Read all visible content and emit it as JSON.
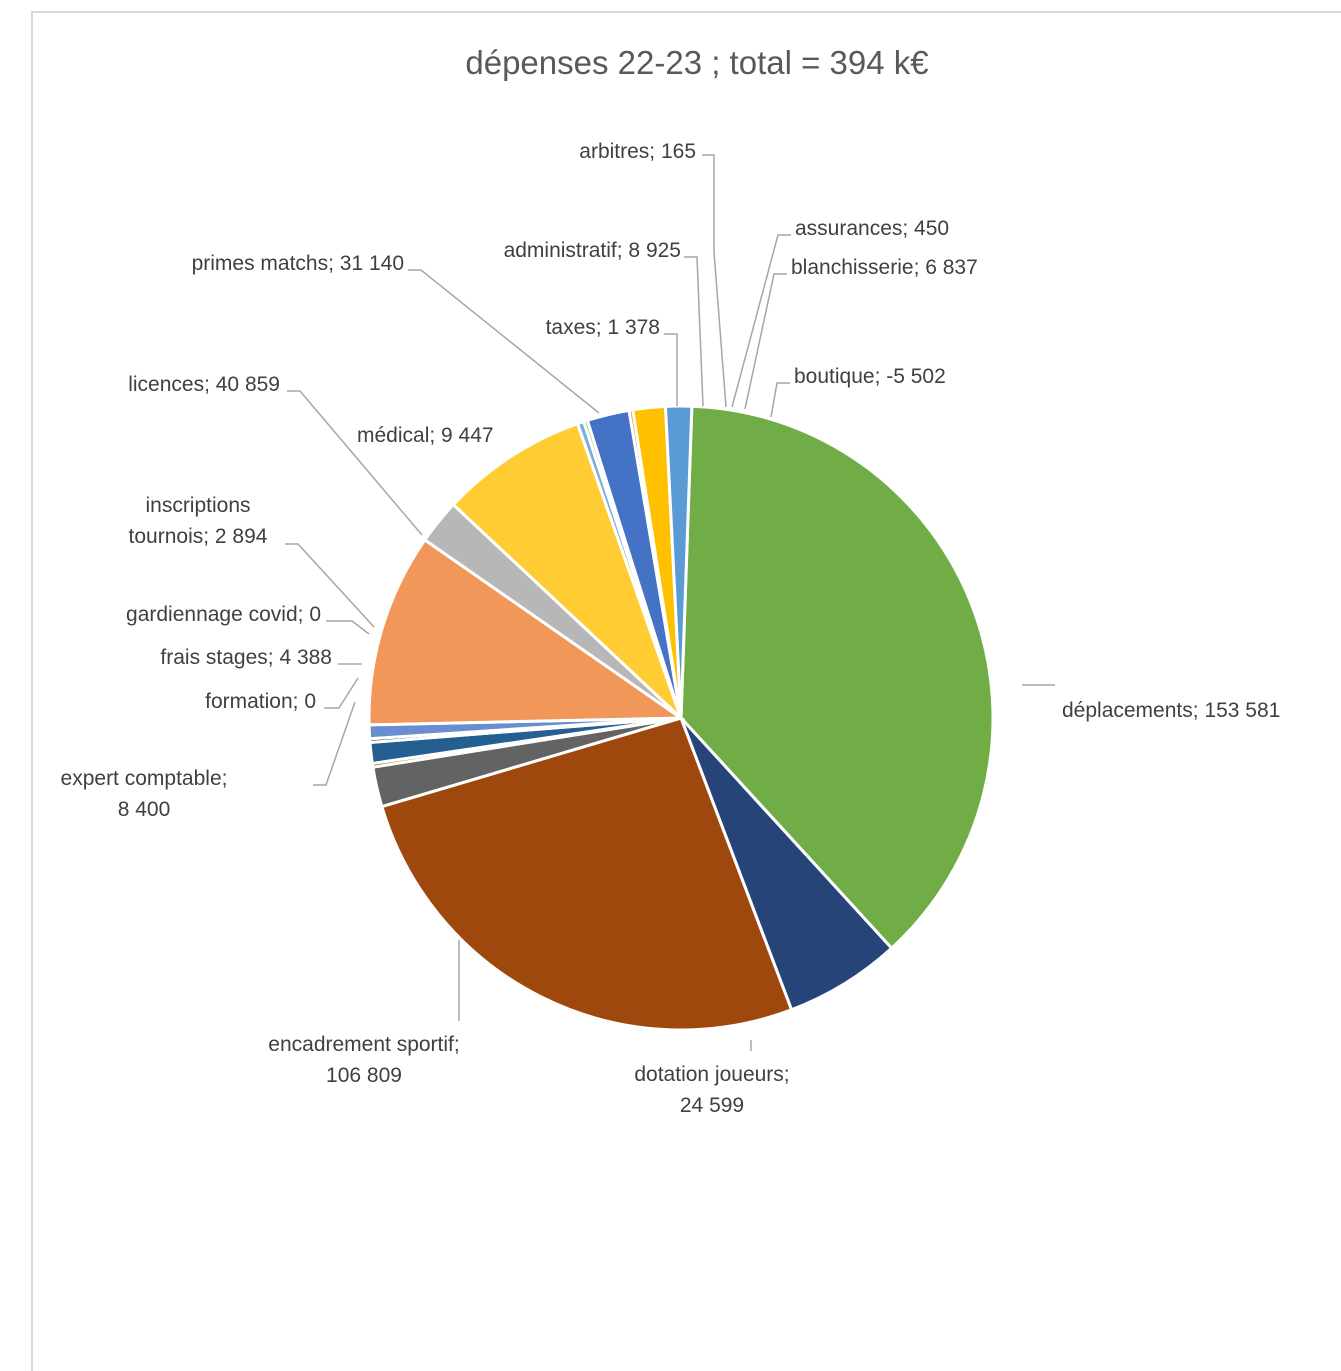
{
  "chart_data": {
    "type": "pie",
    "title": "dépenses 22-23 ; total = 394 k€",
    "slices": [
      {
        "name": "déplacements",
        "value": 153581,
        "label": "déplacements; 153 581",
        "color": "#70ad47"
      },
      {
        "name": "dotation joueurs",
        "value": 24599,
        "label": "dotation joueurs; 24 599",
        "color": "#264478"
      },
      {
        "name": "encadrement sportif",
        "value": 106809,
        "label": "encadrement sportif; 106 809",
        "color": "#9e480e"
      },
      {
        "name": "expert comptable",
        "value": 8400,
        "label": "expert comptable; 8 400",
        "color": "#636363"
      },
      {
        "name": "formation",
        "value": 0,
        "label": "formation; 0",
        "color": "#997300"
      },
      {
        "name": "frais stages",
        "value": 4388,
        "label": "frais stages; 4 388",
        "color": "#255e91"
      },
      {
        "name": "gardiennage covid",
        "value": 0,
        "label": "gardiennage covid; 0",
        "color": "#43682b"
      },
      {
        "name": "inscriptions tournois",
        "value": 2894,
        "label": "inscriptions tournois; 2 894",
        "color": "#698ed0"
      },
      {
        "name": "licences",
        "value": 40859,
        "label": "licences; 40 859",
        "color": "#f1975a"
      },
      {
        "name": "médical",
        "value": 9447,
        "label": "médical; 9 447",
        "color": "#b7b7b7"
      },
      {
        "name": "primes matchs",
        "value": 31140,
        "label": "primes matchs; 31 140",
        "color": "#ffcd33"
      },
      {
        "name": "taxes",
        "value": 1378,
        "label": "taxes; 1 378",
        "color": "#7cafdd"
      },
      {
        "name": "arbitres",
        "value": 165,
        "label": "arbitres; 165",
        "color": "#8cc168"
      },
      {
        "name": "administratif",
        "value": 8925,
        "label": "administratif; 8 925",
        "color": "#4472c4"
      },
      {
        "name": "assurances",
        "value": 450,
        "label": "assurances; 450",
        "color": "#ed7d31"
      },
      {
        "name": "blanchisserie",
        "value": 6837,
        "label": "blanchisserie; 6 837",
        "color": "#ffc000"
      },
      {
        "name": "boutique",
        "value": -5502,
        "label": "boutique; -5 502",
        "color": "#5b9bd5"
      }
    ],
    "legend": "none",
    "data_labels": "outside with leader lines"
  }
}
